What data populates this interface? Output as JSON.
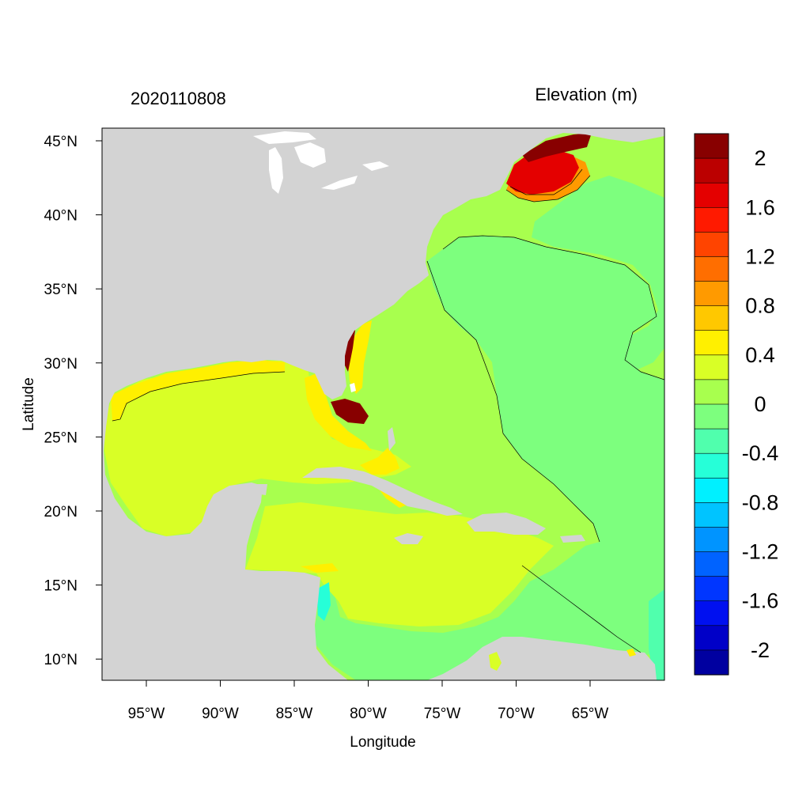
{
  "header": {
    "date_label": "2020110808",
    "variable_label": "Elevation (m)"
  },
  "map": {
    "xlabel": "Longitude",
    "ylabel": "Latitude",
    "lon_ticks": [
      "95°W",
      "90°W",
      "85°W",
      "80°W",
      "75°W",
      "70°W",
      "65°W"
    ],
    "lat_ticks": [
      "45°N",
      "40°N",
      "35°N",
      "30°N",
      "25°N",
      "20°N",
      "15°N",
      "10°N"
    ],
    "land_color": "#d3d3d3"
  },
  "colorbar": {
    "bin_colors": [
      "#880000",
      "#bb0000",
      "#e40000",
      "#ff1a00",
      "#ff4400",
      "#ff6e00",
      "#ff9a00",
      "#ffc800",
      "#fff000",
      "#d9ff26",
      "#a8ff4e",
      "#7dff7e",
      "#50ffad",
      "#26ffd8",
      "#00f0ff",
      "#00c4ff",
      "#0094ff",
      "#0063ff",
      "#0036ff",
      "#0010f0",
      "#0000c8",
      "#0000a0"
    ],
    "labels": [
      "2",
      "1.6",
      "1.2",
      "0.8",
      "0.4",
      "0",
      "-0.4",
      "-0.8",
      "-1.2",
      "-1.6",
      "-2"
    ]
  },
  "fill_colors": {
    "green": "#7dff7e",
    "lime": "#a8ff4e",
    "yellow_green": "#d9ff26",
    "yellow": "#fff000",
    "orange": "#ff9a00",
    "red": "#e40000",
    "dark_red": "#880000",
    "teal": "#50ffad",
    "cyan": "#26ffd8"
  }
}
